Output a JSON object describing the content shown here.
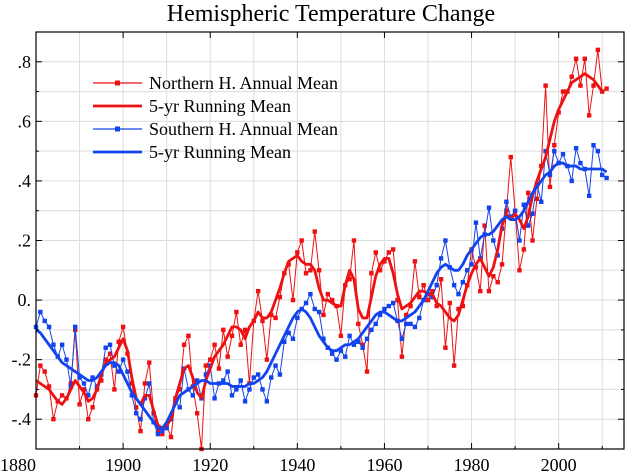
{
  "chart_data": {
    "type": "line",
    "title": "Hemispheric Temperature Change",
    "xlabel": "",
    "ylabel": "",
    "xlim": [
      1880,
      2015
    ],
    "ylim": [
      -0.5,
      0.9
    ],
    "grid": true,
    "legend_position": "top-left",
    "x_ticks": [
      {
        "value": 1880,
        "label": "1880"
      },
      {
        "value": 1900,
        "label": "1900"
      },
      {
        "value": 1920,
        "label": "1920"
      },
      {
        "value": 1940,
        "label": "1940"
      },
      {
        "value": 1960,
        "label": "1960"
      },
      {
        "value": 1980,
        "label": "1980"
      },
      {
        "value": 2000,
        "label": "2000"
      }
    ],
    "y_ticks": [
      {
        "value": -0.4,
        "label": "-.4"
      },
      {
        "value": -0.2,
        "label": "-.2"
      },
      {
        "value": 0.0,
        "label": "0."
      },
      {
        "value": 0.2,
        "label": ".2"
      },
      {
        "value": 0.4,
        "label": ".4"
      },
      {
        "value": 0.6,
        "label": ".6"
      },
      {
        "value": 0.8,
        "label": ".8"
      }
    ],
    "start_year": 1880,
    "series": [
      {
        "name": "Northern H. Annual Mean",
        "kind": "annual",
        "color": "#ee1111",
        "values": [
          -0.32,
          -0.22,
          -0.24,
          -0.29,
          -0.4,
          -0.34,
          -0.32,
          -0.33,
          -0.28,
          -0.1,
          -0.35,
          -0.3,
          -0.4,
          -0.36,
          -0.3,
          -0.27,
          -0.2,
          -0.18,
          -0.3,
          -0.14,
          -0.09,
          -0.18,
          -0.28,
          -0.36,
          -0.44,
          -0.28,
          -0.21,
          -0.38,
          -0.44,
          -0.45,
          -0.42,
          -0.46,
          -0.33,
          -0.3,
          -0.15,
          -0.12,
          -0.29,
          -0.38,
          -0.5,
          -0.22,
          -0.2,
          -0.15,
          -0.23,
          -0.1,
          -0.19,
          -0.12,
          -0.04,
          -0.15,
          -0.1,
          -0.28,
          -0.07,
          0.03,
          -0.07,
          -0.2,
          -0.05,
          -0.06,
          0.01,
          0.09,
          0.12,
          0.0,
          0.16,
          0.2,
          0.09,
          0.1,
          0.23,
          0.1,
          -0.05,
          0.02,
          0.0,
          -0.02,
          -0.12,
          0.05,
          0.07,
          0.2,
          -0.08,
          -0.15,
          -0.24,
          0.09,
          0.16,
          0.1,
          0.13,
          0.16,
          0.17,
          0.0,
          -0.19,
          -0.05,
          -0.02,
          0.13,
          0.01,
          0.05,
          0.0,
          0.03,
          -0.02,
          0.07,
          -0.16,
          -0.01,
          -0.22,
          -0.03,
          -0.02,
          0.05,
          0.17,
          0.11,
          0.03,
          0.25,
          0.03,
          0.08,
          0.06,
          0.12,
          0.3,
          0.48,
          0.3,
          0.1,
          0.17,
          0.36,
          0.2,
          0.34,
          0.45,
          0.72,
          0.38,
          0.52,
          0.63,
          0.7,
          0.7,
          0.75,
          0.81,
          0.72,
          0.81,
          0.62,
          0.72,
          0.84,
          0.7,
          0.71
        ]
      },
      {
        "name": "5-yr Running Mean",
        "kind": "smooth",
        "color": "#ee1111",
        "values": [
          -0.27,
          -0.28,
          -0.29,
          -0.3,
          -0.32,
          -0.34,
          -0.35,
          -0.33,
          -0.3,
          -0.27,
          -0.29,
          -0.31,
          -0.34,
          -0.33,
          -0.3,
          -0.25,
          -0.21,
          -0.2,
          -0.19,
          -0.16,
          -0.13,
          -0.17,
          -0.26,
          -0.33,
          -0.35,
          -0.32,
          -0.32,
          -0.37,
          -0.42,
          -0.43,
          -0.42,
          -0.4,
          -0.33,
          -0.28,
          -0.23,
          -0.22,
          -0.26,
          -0.31,
          -0.33,
          -0.27,
          -0.23,
          -0.19,
          -0.17,
          -0.15,
          -0.12,
          -0.09,
          -0.09,
          -0.1,
          -0.13,
          -0.09,
          -0.07,
          -0.04,
          -0.06,
          -0.06,
          -0.04,
          0.0,
          0.04,
          0.09,
          0.13,
          0.14,
          0.15,
          0.13,
          0.12,
          0.12,
          0.1,
          0.04,
          0.0,
          0.0,
          -0.01,
          -0.02,
          -0.02,
          0.05,
          0.1,
          0.07,
          -0.03,
          -0.06,
          -0.06,
          0.01,
          0.08,
          0.12,
          0.14,
          0.14,
          0.09,
          0.02,
          -0.03,
          -0.02,
          -0.01,
          0.01,
          0.03,
          0.03,
          0.02,
          0.02,
          -0.01,
          -0.02,
          -0.04,
          -0.06,
          -0.07,
          -0.05,
          0.0,
          0.05,
          0.09,
          0.12,
          0.14,
          0.11,
          0.08,
          0.11,
          0.17,
          0.25,
          0.29,
          0.27,
          0.29,
          0.27,
          0.24,
          0.28,
          0.35,
          0.4,
          0.44,
          0.48,
          0.54,
          0.6,
          0.64,
          0.67,
          0.7,
          0.73,
          0.74,
          0.75,
          0.76,
          0.75,
          0.74,
          0.72,
          0.7
        ]
      },
      {
        "name": "Southern H. Annual Mean",
        "kind": "annual",
        "color": "#1144ee",
        "values": [
          -0.09,
          -0.04,
          -0.07,
          -0.09,
          -0.15,
          -0.19,
          -0.15,
          -0.2,
          -0.29,
          -0.09,
          -0.26,
          -0.28,
          -0.32,
          -0.26,
          -0.29,
          -0.25,
          -0.16,
          -0.15,
          -0.22,
          -0.24,
          -0.2,
          -0.24,
          -0.32,
          -0.38,
          -0.4,
          -0.33,
          -0.28,
          -0.41,
          -0.45,
          -0.44,
          -0.43,
          -0.4,
          -0.34,
          -0.36,
          -0.23,
          -0.3,
          -0.32,
          -0.27,
          -0.33,
          -0.25,
          -0.22,
          -0.33,
          -0.28,
          -0.27,
          -0.24,
          -0.32,
          -0.3,
          -0.27,
          -0.34,
          -0.3,
          -0.26,
          -0.25,
          -0.3,
          -0.34,
          -0.26,
          -0.22,
          -0.25,
          -0.14,
          -0.11,
          -0.13,
          -0.06,
          -0.03,
          -0.01,
          0.02,
          -0.03,
          -0.04,
          -0.13,
          -0.16,
          -0.18,
          -0.2,
          -0.17,
          -0.19,
          -0.12,
          -0.15,
          -0.14,
          -0.16,
          -0.13,
          -0.1,
          -0.08,
          -0.05,
          -0.03,
          -0.02,
          -0.01,
          -0.07,
          -0.13,
          -0.08,
          -0.08,
          -0.09,
          -0.06,
          0.0,
          0.02,
          0.01,
          0.05,
          0.14,
          0.2,
          0.11,
          0.05,
          0.02,
          0.06,
          0.1,
          0.12,
          0.26,
          0.14,
          0.22,
          0.31,
          0.2,
          0.15,
          0.24,
          0.33,
          0.28,
          0.3,
          0.2,
          0.32,
          0.25,
          0.29,
          0.39,
          0.33,
          0.5,
          0.42,
          0.5,
          0.46,
          0.49,
          0.45,
          0.4,
          0.51,
          0.46,
          0.44,
          0.35,
          0.52,
          0.5,
          0.42,
          0.41
        ]
      },
      {
        "name": "5-yr Running Mean",
        "kind": "smooth",
        "color": "#1144ee",
        "values": [
          -0.1,
          -0.11,
          -0.13,
          -0.15,
          -0.17,
          -0.19,
          -0.21,
          -0.22,
          -0.23,
          -0.24,
          -0.25,
          -0.26,
          -0.27,
          -0.27,
          -0.26,
          -0.24,
          -0.22,
          -0.21,
          -0.21,
          -0.22,
          -0.25,
          -0.28,
          -0.31,
          -0.33,
          -0.35,
          -0.37,
          -0.39,
          -0.41,
          -0.43,
          -0.43,
          -0.41,
          -0.38,
          -0.35,
          -0.32,
          -0.31,
          -0.3,
          -0.29,
          -0.28,
          -0.27,
          -0.27,
          -0.28,
          -0.28,
          -0.28,
          -0.28,
          -0.28,
          -0.29,
          -0.29,
          -0.29,
          -0.29,
          -0.28,
          -0.28,
          -0.27,
          -0.26,
          -0.24,
          -0.21,
          -0.18,
          -0.15,
          -0.12,
          -0.09,
          -0.06,
          -0.04,
          -0.03,
          -0.04,
          -0.06,
          -0.09,
          -0.12,
          -0.14,
          -0.16,
          -0.17,
          -0.17,
          -0.16,
          -0.15,
          -0.15,
          -0.14,
          -0.13,
          -0.11,
          -0.09,
          -0.07,
          -0.05,
          -0.04,
          -0.04,
          -0.05,
          -0.06,
          -0.07,
          -0.07,
          -0.06,
          -0.05,
          -0.04,
          -0.02,
          0.0,
          0.03,
          0.06,
          0.09,
          0.11,
          0.12,
          0.11,
          0.1,
          0.1,
          0.12,
          0.15,
          0.17,
          0.19,
          0.21,
          0.22,
          0.22,
          0.23,
          0.25,
          0.27,
          0.28,
          0.27,
          0.27,
          0.28,
          0.3,
          0.33,
          0.36,
          0.38,
          0.4,
          0.42,
          0.43,
          0.45,
          0.46,
          0.46,
          0.45,
          0.45,
          0.45,
          0.44,
          0.44,
          0.44,
          0.44,
          0.44,
          0.44,
          0.43
        ]
      }
    ]
  }
}
